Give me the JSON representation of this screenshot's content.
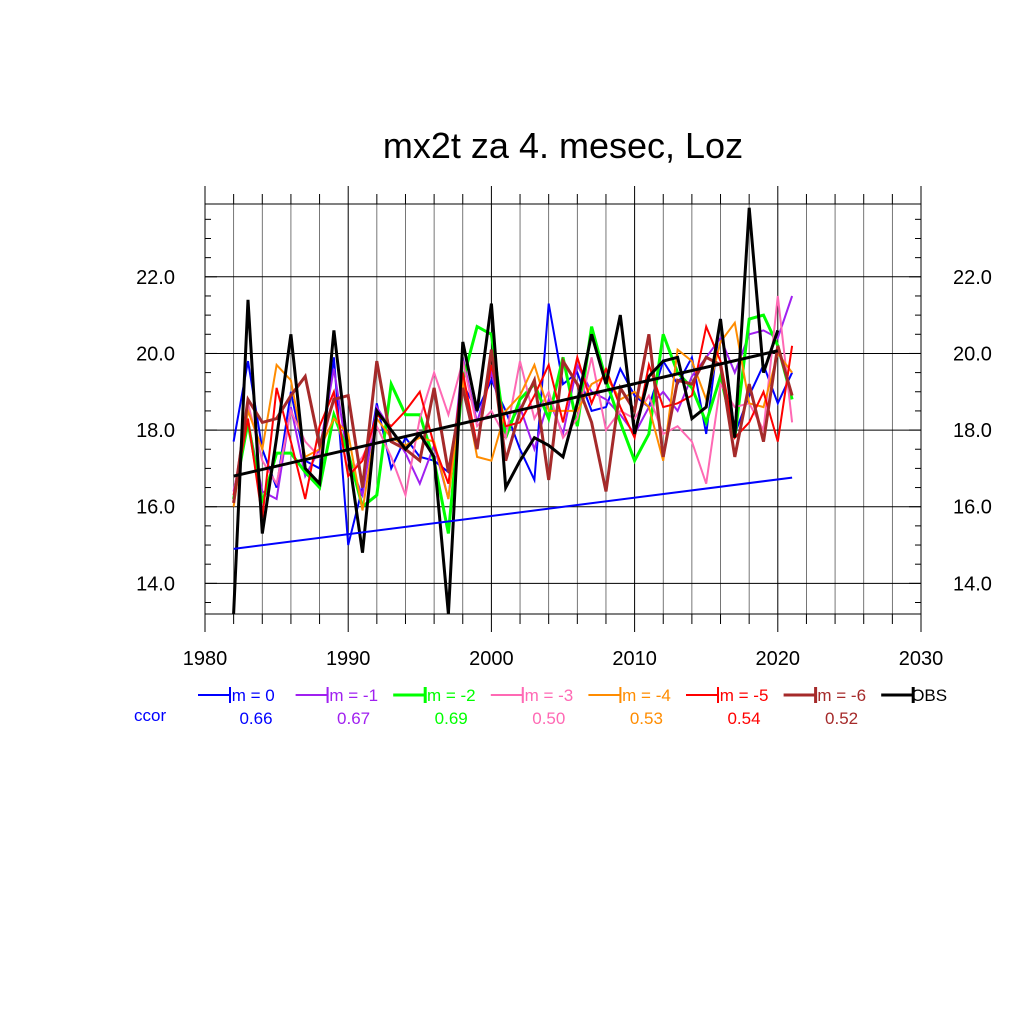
{
  "chart_data": {
    "type": "line",
    "title": "mx2t za 4. mesec, Loz",
    "xlim": [
      1980,
      2030
    ],
    "ylim": [
      13.2,
      23.9
    ],
    "x_ticks": [
      "1980",
      "1990",
      "2000",
      "2010",
      "2020",
      "2030"
    ],
    "y_ticks": [
      "14.0",
      "16.0",
      "18.0",
      "20.0",
      "22.0"
    ],
    "grid": true,
    "legend_position": "bottom",
    "x": [
      1982,
      1983,
      1984,
      1985,
      1986,
      1987,
      1988,
      1989,
      1990,
      1991,
      1992,
      1993,
      1994,
      1995,
      1996,
      1997,
      1998,
      1999,
      2000,
      2001,
      2002,
      2003,
      2004,
      2005,
      2006,
      2007,
      2008,
      2009,
      2010,
      2011,
      2012,
      2013,
      2014,
      2015,
      2016,
      2017,
      2018,
      2019,
      2020,
      2021
    ],
    "series": [
      {
        "name": "lm = 0",
        "color": "#0000ff",
        "width": 2,
        "values": [
          17.7,
          19.8,
          17.5,
          16.5,
          19.0,
          17.2,
          17.0,
          19.9,
          15.0,
          16.5,
          18.7,
          17.0,
          17.8,
          17.3,
          17.2,
          16.9,
          19.2,
          18.5,
          19.3,
          18.5,
          17.5,
          16.7,
          21.3,
          19.2,
          19.5,
          18.5,
          18.6,
          19.6,
          18.9,
          18.6,
          19.8,
          19.2,
          19.9,
          17.9,
          20.9,
          17.9,
          18.9,
          19.7,
          18.7,
          19.5
        ]
      },
      {
        "name": "lm = -1",
        "color": "#a020f0",
        "width": 2,
        "values": [
          16.4,
          18.2,
          16.4,
          16.2,
          18.6,
          16.8,
          17.5,
          19.6,
          17.2,
          16.3,
          18.6,
          18.0,
          17.4,
          16.6,
          17.6,
          16.2,
          19.9,
          18.2,
          19.5,
          18.0,
          18.6,
          17.5,
          18.8,
          17.9,
          19.7,
          19.0,
          18.8,
          18.4,
          17.9,
          18.6,
          19.0,
          18.5,
          19.4,
          19.9,
          20.4,
          19.5,
          20.5,
          20.6,
          20.4,
          21.5
        ]
      },
      {
        "name": "lm = -2",
        "color": "#00ff00",
        "width": 3,
        "values": [
          16.2,
          18.2,
          16.1,
          17.4,
          17.4,
          16.9,
          16.5,
          18.4,
          17.4,
          16.0,
          16.3,
          19.2,
          18.4,
          18.4,
          17.2,
          15.3,
          19.3,
          20.7,
          20.5,
          17.8,
          18.8,
          19.2,
          18.3,
          19.9,
          18.1,
          20.7,
          19.3,
          18.2,
          17.2,
          17.9,
          20.5,
          19.5,
          19.1,
          18.2,
          19.4,
          17.8,
          20.9,
          21.0,
          20.2,
          18.8
        ]
      },
      {
        "name": "lm = -3",
        "color": "#ff69b4",
        "width": 2,
        "values": [
          16.3,
          18.7,
          17.2,
          16.6,
          18.5,
          17.7,
          17.3,
          18.9,
          16.8,
          17.3,
          18.1,
          17.3,
          16.3,
          18.3,
          19.5,
          18.4,
          19.8,
          18.1,
          18.5,
          17.8,
          19.8,
          18.3,
          19.0,
          17.8,
          18.3,
          19.9,
          18.0,
          18.5,
          18.3,
          18.9,
          17.9,
          18.1,
          17.7,
          16.6,
          19.2,
          18.6,
          18.7,
          18.0,
          21.5,
          18.2
        ]
      },
      {
        "name": "lm = -4",
        "color": "#ff8c00",
        "width": 2,
        "values": [
          16.0,
          18.5,
          17.5,
          19.7,
          19.3,
          17.3,
          17.5,
          18.3,
          17.9,
          15.9,
          18.3,
          17.8,
          17.6,
          17.8,
          17.7,
          16.2,
          19.3,
          17.3,
          17.2,
          18.5,
          18.9,
          19.7,
          18.5,
          18.5,
          18.5,
          19.2,
          19.4,
          18.8,
          19.0,
          18.6,
          17.2,
          20.1,
          19.8,
          18.8,
          20.3,
          20.8,
          18.7,
          18.6,
          20.0,
          19.5
        ]
      },
      {
        "name": "lm = -5",
        "color": "#ff0000",
        "width": 2,
        "values": [
          16.3,
          18.3,
          15.7,
          19.1,
          17.7,
          16.2,
          18.1,
          19.0,
          16.8,
          17.2,
          18.4,
          18.1,
          18.5,
          19.0,
          17.6,
          16.6,
          19.5,
          17.6,
          19.7,
          18.1,
          18.2,
          18.9,
          19.7,
          18.2,
          19.9,
          18.7,
          19.6,
          18.6,
          17.8,
          19.7,
          18.6,
          18.7,
          18.9,
          20.7,
          19.8,
          17.8,
          18.2,
          19.0,
          17.7,
          20.2
        ]
      },
      {
        "name": "lm = -6",
        "color": "#a52a2a",
        "width": 3,
        "values": [
          16.1,
          18.8,
          18.2,
          18.3,
          18.9,
          19.4,
          17.6,
          18.8,
          18.9,
          16.5,
          19.8,
          17.7,
          17.5,
          17.2,
          19.1,
          16.9,
          19.1,
          17.5,
          20.1,
          17.2,
          18.5,
          19.3,
          16.7,
          19.8,
          19.2,
          18.2,
          16.4,
          19.1,
          18.5,
          20.5,
          17.3,
          19.3,
          19.2,
          19.9,
          19.7,
          17.3,
          19.2,
          17.7,
          20.2,
          18.9
        ]
      },
      {
        "name": "OBS",
        "color": "#000000",
        "width": 3,
        "values": [
          13.2,
          21.4,
          15.3,
          17.8,
          20.5,
          17.0,
          16.6,
          20.6,
          17.4,
          14.8,
          18.5,
          18.0,
          17.5,
          17.9,
          17.3,
          13.2,
          20.3,
          18.5,
          21.3,
          16.5,
          17.2,
          17.8,
          17.6,
          17.3,
          18.7,
          20.5,
          19.2,
          21.0,
          17.9,
          19.4,
          19.8,
          19.9,
          18.3,
          18.6,
          20.9,
          17.8,
          23.8,
          19.5,
          20.6,
          null
        ]
      }
    ],
    "trend_lines": [
      {
        "name": "lm = 0 trend",
        "color": "#0000ff",
        "width": 2,
        "x": [
          1982,
          2021
        ],
        "values": [
          14.9,
          16.76
        ]
      },
      {
        "name": "OBS trend",
        "color": "#000000",
        "width": 3,
        "x": [
          1982,
          2020
        ],
        "values": [
          16.8,
          20.07
        ]
      }
    ],
    "ccor_label": "ccor",
    "ccor_color": "#0000ff",
    "ccor_values": [
      "0.66",
      "0.67",
      "0.69",
      "0.50",
      "0.53",
      "0.54",
      "0.52"
    ]
  }
}
